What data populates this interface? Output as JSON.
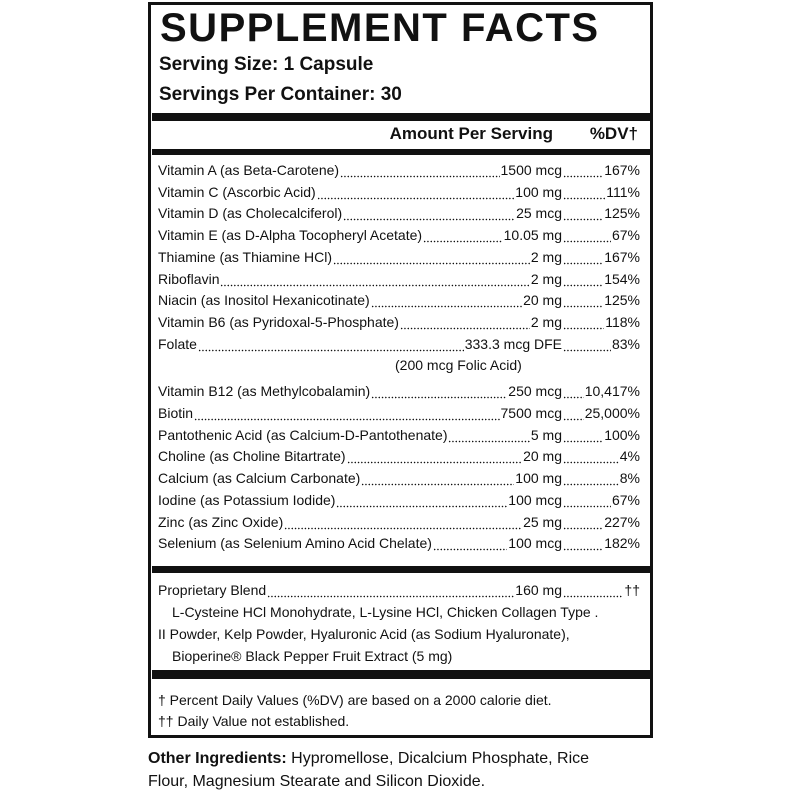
{
  "header": {
    "title": "SUPPLEMENT FACTS",
    "serving_size": "Serving Size: 1 Capsule",
    "servings_per_container": "Servings Per Container: 30"
  },
  "table": {
    "columns": [
      "Amount Per Serving",
      "%DV†"
    ],
    "rows": [
      {
        "name": "Vitamin A (as Beta-Carotene)",
        "amount": "1500 mcg",
        "dv": "167%"
      },
      {
        "name": "Vitamin C (Ascorbic Acid)",
        "amount": "100 mg",
        "dv": "111%"
      },
      {
        "name": "Vitamin D (as Cholecalciferol)",
        "amount": "25 mcg",
        "dv": "125%"
      },
      {
        "name": "Vitamin E (as D-Alpha Tocopheryl Acetate)",
        "amount": "10.05 mg",
        "dv": "67%"
      },
      {
        "name": "Thiamine (as Thiamine HCl)",
        "amount": "2 mg",
        "dv": "167%"
      },
      {
        "name": "Riboflavin",
        "amount": "2 mg",
        "dv": "154%"
      },
      {
        "name": "Niacin (as Inositol Hexanicotinate)",
        "amount": "20 mg",
        "dv": "125%"
      },
      {
        "name": "Vitamin B6 (as Pyridoxal-5-Phosphate)",
        "amount": "2 mg",
        "dv": "118%"
      },
      {
        "name": "Folate",
        "amount": "333.3 mcg DFE",
        "dv": "83%",
        "note": "(200 mcg Folic Acid)"
      },
      {
        "name": "Vitamin B12 (as Methylcobalamin)",
        "amount": "250 mcg",
        "dv": "10,417%"
      },
      {
        "name": "Biotin",
        "amount": "7500 mcg",
        "dv": "25,000%"
      },
      {
        "name": "Pantothenic Acid (as Calcium-D-Pantothenate)",
        "amount": "5 mg",
        "dv": "100%"
      },
      {
        "name": "Choline (as Choline Bitartrate)",
        "amount": "20 mg",
        "dv": "4%"
      },
      {
        "name": "Calcium (as Calcium Carbonate)",
        "amount": "100 mg",
        "dv": "8%"
      },
      {
        "name": "Iodine (as Potassium Iodide)",
        "amount": "100 mcg",
        "dv": "67%"
      },
      {
        "name": "Zinc (as Zinc Oxide)",
        "amount": "25 mg",
        "dv": "227%"
      },
      {
        "name": "Selenium (as Selenium Amino Acid Chelate)",
        "amount": "100 mcg",
        "dv": "182%"
      }
    ]
  },
  "proprietary_blend": {
    "name": "Proprietary Blend",
    "amount": "160 mg",
    "dv": "††",
    "description": [
      "L-Cysteine HCl Monohydrate, L-Lysine HCl, Chicken Collagen Type .",
      "II Powder, Kelp Powder, Hyaluronic Acid (as Sodium Hyaluronate),",
      "Bioperine® Black Pepper Fruit Extract (5 mg)"
    ]
  },
  "footnotes": [
    "† Percent Daily Values (%DV) are based on a 2000 calorie diet.",
    "†† Daily Value not established."
  ],
  "other_ingredients": {
    "label": "Other Ingredients:",
    "lines": [
      "Hypromellose, Dicalcium Phosphate, Rice",
      "Flour, Magnesium Stearate and Silicon Dioxide."
    ]
  }
}
